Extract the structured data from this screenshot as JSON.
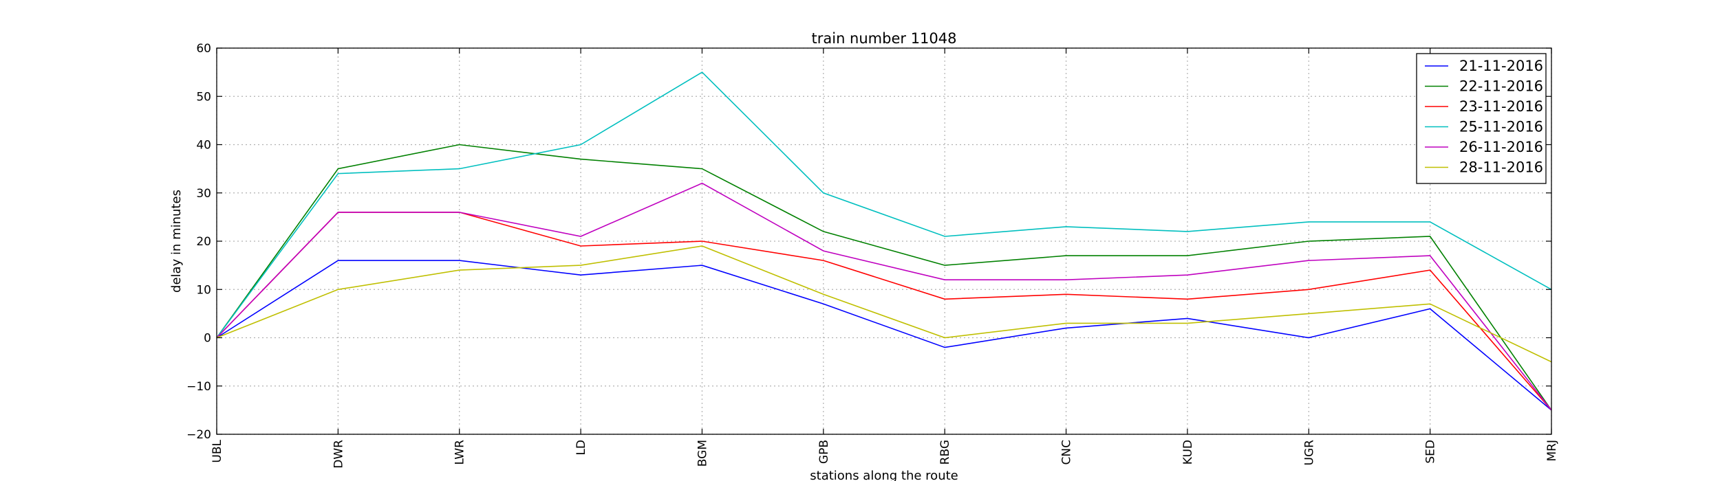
{
  "chart_data": {
    "type": "line",
    "title": "train number 11048",
    "xlabel": "stations along the route",
    "ylabel": "delay in minutes",
    "categories": [
      "UBL",
      "DWR",
      "LWR",
      "LD",
      "BGM",
      "GPB",
      "RBG",
      "CNC",
      "KUD",
      "UGR",
      "SED",
      "MRJ"
    ],
    "ylim": [
      -20,
      60
    ],
    "yticks": [
      -20,
      -10,
      0,
      10,
      20,
      30,
      40,
      50,
      60
    ],
    "ytick_labels": [
      "−20",
      "−10",
      "0",
      "10",
      "20",
      "30",
      "40",
      "50",
      "60"
    ],
    "grid": true,
    "legend_position": "top-right",
    "series": [
      {
        "name": "21-11-2016",
        "color": "#0000ff",
        "values": [
          0,
          16,
          16,
          13,
          15,
          7,
          -2,
          2,
          4,
          0,
          6,
          -15
        ]
      },
      {
        "name": "22-11-2016",
        "color": "#008000",
        "values": [
          0,
          35,
          40,
          37,
          35,
          22,
          15,
          17,
          17,
          20,
          21,
          -15
        ]
      },
      {
        "name": "23-11-2016",
        "color": "#ff0000",
        "values": [
          0,
          26,
          26,
          19,
          20,
          16,
          8,
          9,
          8,
          10,
          14,
          -15
        ]
      },
      {
        "name": "25-11-2016",
        "color": "#00bfbf",
        "values": [
          0,
          34,
          35,
          40,
          55,
          30,
          21,
          23,
          22,
          24,
          24,
          10
        ]
      },
      {
        "name": "26-11-2016",
        "color": "#bf00bf",
        "values": [
          0,
          26,
          26,
          21,
          32,
          18,
          12,
          12,
          13,
          16,
          17,
          -15
        ]
      },
      {
        "name": "28-11-2016",
        "color": "#bfbf00",
        "values": [
          0,
          10,
          14,
          15,
          19,
          9,
          0,
          3,
          3,
          5,
          7,
          -5
        ]
      }
    ]
  }
}
